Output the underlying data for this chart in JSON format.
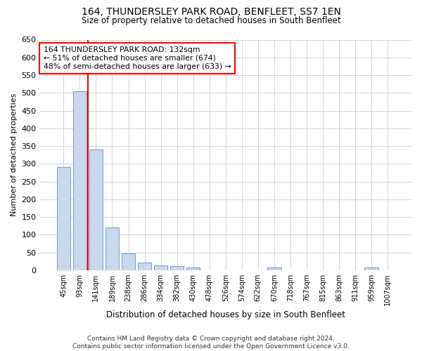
{
  "title": "164, THUNDERSLEY PARK ROAD, BENFLEET, SS7 1EN",
  "subtitle": "Size of property relative to detached houses in South Benfleet",
  "xlabel": "Distribution of detached houses by size in South Benfleet",
  "ylabel": "Number of detached properties",
  "footer_line1": "Contains HM Land Registry data © Crown copyright and database right 2024.",
  "footer_line2": "Contains public sector information licensed under the Open Government Licence v3.0.",
  "categories": [
    "45sqm",
    "93sqm",
    "141sqm",
    "189sqm",
    "238sqm",
    "286sqm",
    "334sqm",
    "382sqm",
    "430sqm",
    "478sqm",
    "526sqm",
    "574sqm",
    "622sqm",
    "670sqm",
    "718sqm",
    "767sqm",
    "815sqm",
    "863sqm",
    "911sqm",
    "959sqm",
    "1007sqm"
  ],
  "values": [
    290,
    505,
    340,
    120,
    47,
    22,
    13,
    12,
    7,
    0,
    0,
    0,
    0,
    7,
    0,
    0,
    0,
    0,
    0,
    7,
    0
  ],
  "bar_color": "#c8d8ee",
  "bar_edge_color": "#6090c0",
  "vline_color": "red",
  "vline_pos": 1.5,
  "annotation_text": "164 THUNDERSLEY PARK ROAD: 132sqm\n← 51% of detached houses are smaller (674)\n48% of semi-detached houses are larger (633) →",
  "annotation_box_color": "white",
  "annotation_box_edge": "red",
  "ylim": [
    0,
    650
  ],
  "yticks": [
    0,
    50,
    100,
    150,
    200,
    250,
    300,
    350,
    400,
    450,
    500,
    550,
    600,
    650
  ],
  "grid_color": "#cccccc",
  "bg_color": "#ffffff",
  "plot_bg_color": "#ffffff"
}
